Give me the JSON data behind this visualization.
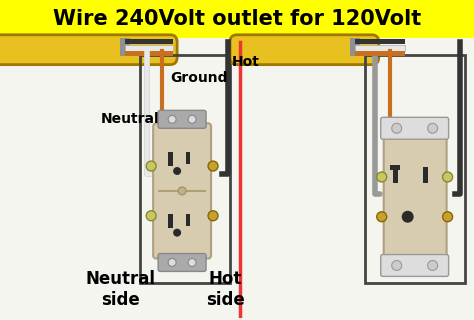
{
  "title": "Wire 240Volt outlet for 120Volt",
  "title_color": "#000000",
  "title_bg_color": "#FFFF00",
  "title_fontsize": 15,
  "bg_color": "#F5F5F0",
  "divider_color": "#EE3333",
  "wire_yellow_color": "#E8C020",
  "wire_gray_color": "#C0C0C0",
  "wire_white_color": "#E8E8E8",
  "wire_black_color": "#333333",
  "wire_copper_color": "#C87020",
  "box_line_color": "#444444",
  "outlet_body_color": "#D8CCB0",
  "outlet_edge_color": "#B0A080",
  "tab_color": "#AAAAAA",
  "screw_color": "#C8A040",
  "label_color": "#000000",
  "label_fontsize": 10,
  "labels": {
    "neutral": "Neutral",
    "ground": "Ground",
    "hot": "Hot",
    "neutral_side": "Neutral\nside",
    "hot_side": "Hot\nside"
  }
}
